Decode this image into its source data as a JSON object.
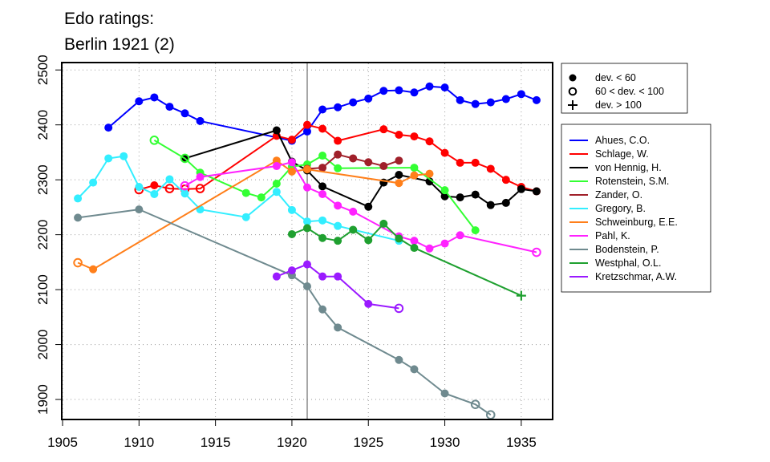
{
  "chart_data": {
    "type": "line",
    "title_lines": [
      "Edo ratings:",
      "Berlin 1921 (2)"
    ],
    "xlabel": "",
    "ylabel": "",
    "xlim": [
      1905,
      1937
    ],
    "ylim": [
      1865,
      2512
    ],
    "xticks": [
      1905,
      1910,
      1915,
      1920,
      1925,
      1930,
      1935
    ],
    "yticks": [
      1900,
      2000,
      2100,
      2200,
      2300,
      2400,
      2500
    ],
    "grid": true,
    "reference_line_x": 1921,
    "marker_legend": [
      {
        "label": "dev. < 60",
        "marker": "filled"
      },
      {
        "label": "60 < dev. < 100",
        "marker": "open"
      },
      {
        "label": "dev. > 100",
        "marker": "plus"
      }
    ],
    "series": [
      {
        "name": "Ahues, C.O.",
        "color": "#0000ff",
        "points": [
          {
            "x": 1908,
            "y": 2395,
            "m": "f"
          },
          {
            "x": 1910,
            "y": 2443,
            "m": "f"
          },
          {
            "x": 1911,
            "y": 2450,
            "m": "f"
          },
          {
            "x": 1912,
            "y": 2433,
            "m": "f"
          },
          {
            "x": 1913,
            "y": 2421,
            "m": "f"
          },
          {
            "x": 1914,
            "y": 2407,
            "m": "f"
          },
          {
            "x": 1920,
            "y": 2371,
            "m": "f"
          },
          {
            "x": 1921,
            "y": 2388,
            "m": "f"
          },
          {
            "x": 1922,
            "y": 2428,
            "m": "f"
          },
          {
            "x": 1923,
            "y": 2432,
            "m": "f"
          },
          {
            "x": 1924,
            "y": 2441,
            "m": "f"
          },
          {
            "x": 1925,
            "y": 2448,
            "m": "f"
          },
          {
            "x": 1926,
            "y": 2462,
            "m": "f"
          },
          {
            "x": 1927,
            "y": 2463,
            "m": "f"
          },
          {
            "x": 1928,
            "y": 2459,
            "m": "f"
          },
          {
            "x": 1929,
            "y": 2470,
            "m": "f"
          },
          {
            "x": 1930,
            "y": 2468,
            "m": "f"
          },
          {
            "x": 1931,
            "y": 2445,
            "m": "f"
          },
          {
            "x": 1932,
            "y": 2438,
            "m": "f"
          },
          {
            "x": 1933,
            "y": 2441,
            "m": "f"
          },
          {
            "x": 1934,
            "y": 2447,
            "m": "f"
          },
          {
            "x": 1935,
            "y": 2456,
            "m": "f"
          },
          {
            "x": 1936,
            "y": 2445,
            "m": "f"
          }
        ]
      },
      {
        "name": "Schlage, W.",
        "color": "#ff0000",
        "points": [
          {
            "x": 1910,
            "y": 2282,
            "m": "o"
          },
          {
            "x": 1911,
            "y": 2290,
            "m": "f"
          },
          {
            "x": 1912,
            "y": 2284,
            "m": "o"
          },
          {
            "x": 1913,
            "y": 2283,
            "m": "o"
          },
          {
            "x": 1914,
            "y": 2284,
            "m": "o"
          },
          {
            "x": 1919,
            "y": 2380,
            "m": "f"
          },
          {
            "x": 1920,
            "y": 2373,
            "m": "f"
          },
          {
            "x": 1921,
            "y": 2400,
            "m": "f"
          },
          {
            "x": 1922,
            "y": 2393,
            "m": "f"
          },
          {
            "x": 1923,
            "y": 2371,
            "m": "f"
          },
          {
            "x": 1926,
            "y": 2392,
            "m": "f"
          },
          {
            "x": 1927,
            "y": 2382,
            "m": "f"
          },
          {
            "x": 1928,
            "y": 2379,
            "m": "f"
          },
          {
            "x": 1929,
            "y": 2370,
            "m": "f"
          },
          {
            "x": 1930,
            "y": 2349,
            "m": "f"
          },
          {
            "x": 1931,
            "y": 2331,
            "m": "f"
          },
          {
            "x": 1932,
            "y": 2331,
            "m": "f"
          },
          {
            "x": 1933,
            "y": 2320,
            "m": "f"
          },
          {
            "x": 1934,
            "y": 2300,
            "m": "f"
          },
          {
            "x": 1935,
            "y": 2287,
            "m": "f"
          },
          {
            "x": 1936,
            "y": 2279,
            "m": "f"
          }
        ]
      },
      {
        "name": "von Hennig, H.",
        "color": "#000000",
        "points": [
          {
            "x": 1913,
            "y": 2339,
            "m": "f"
          },
          {
            "x": 1919,
            "y": 2390,
            "m": "f"
          },
          {
            "x": 1920,
            "y": 2333,
            "m": "f"
          },
          {
            "x": 1921,
            "y": 2317,
            "m": "f"
          },
          {
            "x": 1922,
            "y": 2288,
            "m": "f"
          },
          {
            "x": 1925,
            "y": 2251,
            "m": "f"
          },
          {
            "x": 1926,
            "y": 2295,
            "m": "f"
          },
          {
            "x": 1927,
            "y": 2309,
            "m": "f"
          },
          {
            "x": 1929,
            "y": 2297,
            "m": "f"
          },
          {
            "x": 1930,
            "y": 2270,
            "m": "f"
          },
          {
            "x": 1931,
            "y": 2268,
            "m": "f"
          },
          {
            "x": 1932,
            "y": 2273,
            "m": "f"
          },
          {
            "x": 1933,
            "y": 2254,
            "m": "f"
          },
          {
            "x": 1934,
            "y": 2258,
            "m": "f"
          },
          {
            "x": 1935,
            "y": 2283,
            "m": "f"
          },
          {
            "x": 1936,
            "y": 2279,
            "m": "f"
          }
        ]
      },
      {
        "name": "Rotenstein, S.M.",
        "color": "#33ff33",
        "points": [
          {
            "x": 1911,
            "y": 2372,
            "m": "o"
          },
          {
            "x": 1913,
            "y": 2339,
            "m": "o"
          },
          {
            "x": 1914,
            "y": 2313,
            "m": "f"
          },
          {
            "x": 1917,
            "y": 2276,
            "m": "f"
          },
          {
            "x": 1918,
            "y": 2268,
            "m": "f"
          },
          {
            "x": 1919,
            "y": 2293,
            "m": "f"
          },
          {
            "x": 1920,
            "y": 2324,
            "m": "f"
          },
          {
            "x": 1921,
            "y": 2328,
            "m": "f"
          },
          {
            "x": 1922,
            "y": 2344,
            "m": "f"
          },
          {
            "x": 1923,
            "y": 2321,
            "m": "f"
          },
          {
            "x": 1928,
            "y": 2322,
            "m": "f"
          },
          {
            "x": 1930,
            "y": 2281,
            "m": "f"
          },
          {
            "x": 1932,
            "y": 2208,
            "m": "f"
          }
        ]
      },
      {
        "name": "Zander, O.",
        "color": "#a0202a",
        "points": [
          {
            "x": 1921,
            "y": 2320,
            "m": "f"
          },
          {
            "x": 1922,
            "y": 2322,
            "m": "f"
          },
          {
            "x": 1923,
            "y": 2346,
            "m": "f"
          },
          {
            "x": 1924,
            "y": 2339,
            "m": "f"
          },
          {
            "x": 1925,
            "y": 2332,
            "m": "f"
          },
          {
            "x": 1926,
            "y": 2325,
            "m": "f"
          },
          {
            "x": 1927,
            "y": 2335,
            "m": "f"
          }
        ]
      },
      {
        "name": "Gregory, B.",
        "color": "#33eeff",
        "points": [
          {
            "x": 1906,
            "y": 2266,
            "m": "f"
          },
          {
            "x": 1907,
            "y": 2295,
            "m": "f"
          },
          {
            "x": 1908,
            "y": 2339,
            "m": "f"
          },
          {
            "x": 1909,
            "y": 2343,
            "m": "f"
          },
          {
            "x": 1910,
            "y": 2287,
            "m": "f"
          },
          {
            "x": 1911,
            "y": 2274,
            "m": "f"
          },
          {
            "x": 1912,
            "y": 2301,
            "m": "f"
          },
          {
            "x": 1913,
            "y": 2275,
            "m": "f"
          },
          {
            "x": 1914,
            "y": 2246,
            "m": "f"
          },
          {
            "x": 1917,
            "y": 2232,
            "m": "f"
          },
          {
            "x": 1919,
            "y": 2278,
            "m": "f"
          },
          {
            "x": 1920,
            "y": 2245,
            "m": "f"
          },
          {
            "x": 1921,
            "y": 2224,
            "m": "f"
          },
          {
            "x": 1922,
            "y": 2226,
            "m": "f"
          },
          {
            "x": 1923,
            "y": 2216,
            "m": "f"
          },
          {
            "x": 1927,
            "y": 2189,
            "m": "f"
          }
        ]
      },
      {
        "name": "Schweinburg, E.E.",
        "color": "#ff7f1a",
        "points": [
          {
            "x": 1906,
            "y": 2149,
            "m": "o"
          },
          {
            "x": 1907,
            "y": 2137,
            "m": "f"
          },
          {
            "x": 1919,
            "y": 2335,
            "m": "f"
          },
          {
            "x": 1920,
            "y": 2315,
            "m": "f"
          },
          {
            "x": 1921,
            "y": 2319,
            "m": "f"
          },
          {
            "x": 1927,
            "y": 2294,
            "m": "f"
          },
          {
            "x": 1928,
            "y": 2308,
            "m": "f"
          },
          {
            "x": 1929,
            "y": 2311,
            "m": "f"
          }
        ]
      },
      {
        "name": "Pahl, K.",
        "color": "#ff22ff",
        "points": [
          {
            "x": 1913,
            "y": 2289,
            "m": "o"
          },
          {
            "x": 1914,
            "y": 2305,
            "m": "f"
          },
          {
            "x": 1919,
            "y": 2325,
            "m": "f"
          },
          {
            "x": 1920,
            "y": 2332,
            "m": "f"
          },
          {
            "x": 1921,
            "y": 2286,
            "m": "f"
          },
          {
            "x": 1922,
            "y": 2274,
            "m": "f"
          },
          {
            "x": 1923,
            "y": 2253,
            "m": "f"
          },
          {
            "x": 1924,
            "y": 2242,
            "m": "f"
          },
          {
            "x": 1927,
            "y": 2197,
            "m": "f"
          },
          {
            "x": 1928,
            "y": 2189,
            "m": "f"
          },
          {
            "x": 1929,
            "y": 2175,
            "m": "f"
          },
          {
            "x": 1930,
            "y": 2184,
            "m": "f"
          },
          {
            "x": 1931,
            "y": 2199,
            "m": "f"
          },
          {
            "x": 1936,
            "y": 2168,
            "m": "o"
          }
        ]
      },
      {
        "name": "Bodenstein, P.",
        "color": "#6f8a8f",
        "points": [
          {
            "x": 1906,
            "y": 2231,
            "m": "f"
          },
          {
            "x": 1910,
            "y": 2246,
            "m": "f"
          },
          {
            "x": 1920,
            "y": 2126,
            "m": "f"
          },
          {
            "x": 1921,
            "y": 2106,
            "m": "f"
          },
          {
            "x": 1922,
            "y": 2064,
            "m": "f"
          },
          {
            "x": 1923,
            "y": 2031,
            "m": "f"
          },
          {
            "x": 1927,
            "y": 1972,
            "m": "f"
          },
          {
            "x": 1928,
            "y": 1955,
            "m": "f"
          },
          {
            "x": 1930,
            "y": 1911,
            "m": "f"
          },
          {
            "x": 1932,
            "y": 1891,
            "m": "o"
          },
          {
            "x": 1933,
            "y": 1872,
            "m": "o"
          }
        ]
      },
      {
        "name": "Westphal, O.L.",
        "color": "#1fa030",
        "points": [
          {
            "x": 1920,
            "y": 2201,
            "m": "f"
          },
          {
            "x": 1921,
            "y": 2212,
            "m": "f"
          },
          {
            "x": 1922,
            "y": 2194,
            "m": "f"
          },
          {
            "x": 1923,
            "y": 2189,
            "m": "f"
          },
          {
            "x": 1924,
            "y": 2209,
            "m": "f"
          },
          {
            "x": 1925,
            "y": 2190,
            "m": "f"
          },
          {
            "x": 1926,
            "y": 2220,
            "m": "f"
          },
          {
            "x": 1927,
            "y": 2193,
            "m": "f"
          },
          {
            "x": 1928,
            "y": 2176,
            "m": "f"
          },
          {
            "x": 1935,
            "y": 2089,
            "m": "p"
          }
        ]
      },
      {
        "name": "Kretzschmar, A.W.",
        "color": "#9a1aff",
        "points": [
          {
            "x": 1919,
            "y": 2124,
            "m": "f"
          },
          {
            "x": 1920,
            "y": 2135,
            "m": "f"
          },
          {
            "x": 1921,
            "y": 2146,
            "m": "f"
          },
          {
            "x": 1922,
            "y": 2124,
            "m": "f"
          },
          {
            "x": 1923,
            "y": 2124,
            "m": "f"
          },
          {
            "x": 1925,
            "y": 2074,
            "m": "f"
          },
          {
            "x": 1927,
            "y": 2066,
            "m": "o"
          }
        ]
      }
    ]
  }
}
